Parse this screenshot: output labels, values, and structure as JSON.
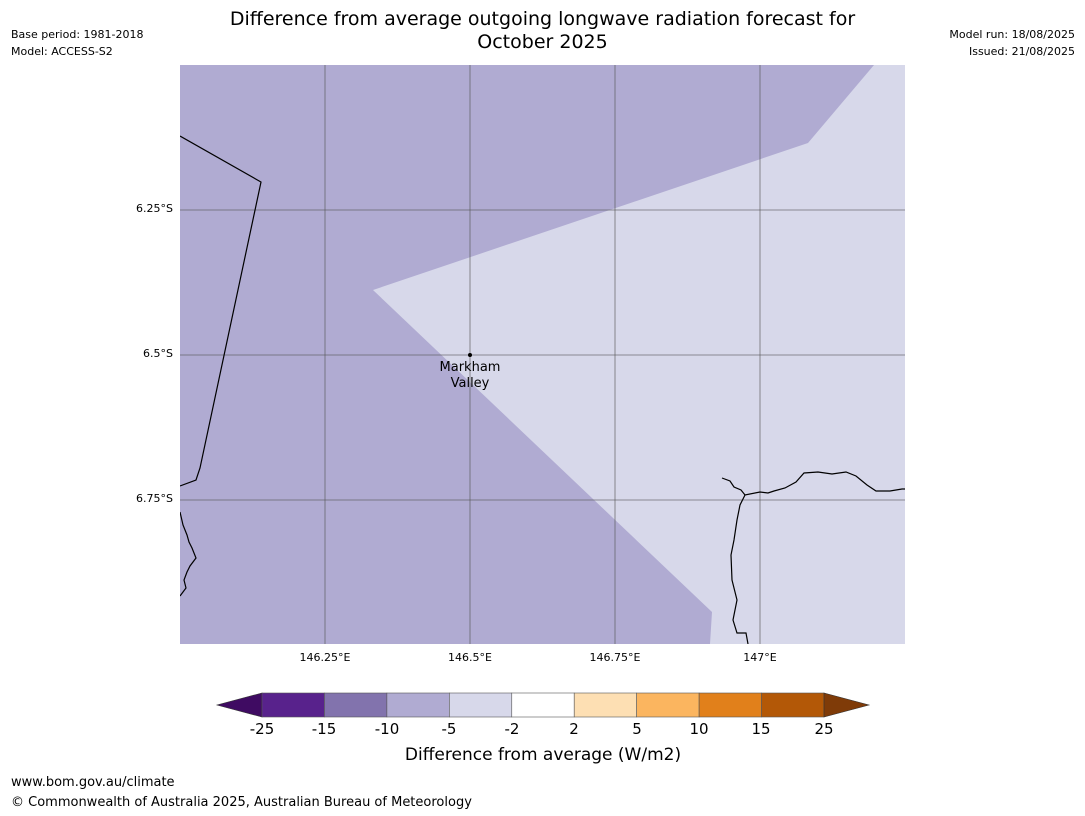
{
  "title_line1": "Difference from average outgoing longwave radiation forecast for",
  "title_line2": "October 2025",
  "meta_left": {
    "base_period": "Base period: 1981-2018",
    "model": "Model: ACCESS-S2"
  },
  "meta_right": {
    "model_run": "Model run: 18/08/2025",
    "issued": "Issued: 21/08/2025"
  },
  "map": {
    "latitude_labels": [
      "6.25°S",
      "6.5°S",
      "6.75°S"
    ],
    "longitude_labels": [
      "146.25°E",
      "146.5°E",
      "146.75°E",
      "147°E"
    ],
    "place": {
      "name_line1": "Markham",
      "name_line2": "Valley"
    },
    "region_colors": {
      "below_-10_to_-5": "#b0abd2",
      "below_-5_to_-2": "#d7d8ea"
    }
  },
  "colorbar": {
    "ticks": [
      "-25",
      "-15",
      "-10",
      "-5",
      "-2",
      "2",
      "5",
      "10",
      "15",
      "25"
    ],
    "colors": [
      "#3f0b62",
      "#58228c",
      "#8273ad",
      "#b0abd2",
      "#d7d8ea",
      "#ffffff",
      "#fddfb3",
      "#fbb55f",
      "#e1801b",
      "#b35807",
      "#7f3b08"
    ],
    "label": "Difference from average (W/m2)"
  },
  "footer": {
    "url": "www.bom.gov.au/climate",
    "copyright": "© Commonwealth of Australia 2025, Australian Bureau of Meteorology"
  }
}
